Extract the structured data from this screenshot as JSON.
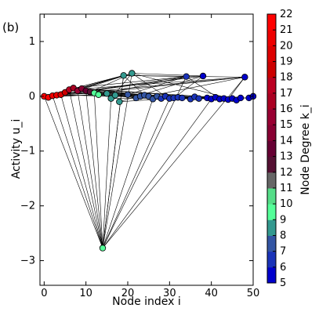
{
  "chart_data": {
    "type": "scatter",
    "panel_label": "(b)",
    "xlabel": "Node index i",
    "ylabel": "Activity u_i",
    "xlim": [
      -1,
      50
    ],
    "ylim": [
      -3.45,
      1.5
    ],
    "xticks": [
      0,
      10,
      20,
      30,
      40,
      50
    ],
    "yticks": [
      1,
      0,
      -1,
      -2,
      -3
    ],
    "colorbar": {
      "label": "Node Degree k_i",
      "min": 5,
      "max": 22,
      "ticks": [
        5,
        6,
        7,
        8,
        9,
        10,
        11,
        12,
        13,
        14,
        15,
        16,
        17,
        18,
        19,
        20,
        21,
        22
      ],
      "band_colors": [
        "#0000cc",
        "#1a33b8",
        "#3355a3",
        "#33998f",
        "#55ff99",
        "#55dd88",
        "#666666",
        "#551133",
        "#660033",
        "#880033",
        "#990033",
        "#aa0022",
        "#bb0022",
        "#cc0000",
        "#dd0000",
        "#ee0000",
        "#ff0000"
      ]
    },
    "nodes": [
      {
        "x": 0,
        "y": 0.0,
        "k": 21
      },
      {
        "x": 1,
        "y": -0.02,
        "k": 21
      },
      {
        "x": 2,
        "y": 0.01,
        "k": 20
      },
      {
        "x": 3,
        "y": 0.02,
        "k": 20
      },
      {
        "x": 4,
        "y": 0.03,
        "k": 19
      },
      {
        "x": 5,
        "y": 0.07,
        "k": 18
      },
      {
        "x": 6,
        "y": 0.12,
        "k": 17
      },
      {
        "x": 7,
        "y": 0.15,
        "k": 16
      },
      {
        "x": 8,
        "y": 0.1,
        "k": 15
      },
      {
        "x": 9,
        "y": 0.14,
        "k": 14
      },
      {
        "x": 10,
        "y": 0.1,
        "k": 13
      },
      {
        "x": 11,
        "y": 0.08,
        "k": 12
      },
      {
        "x": 12,
        "y": 0.06,
        "k": 9
      },
      {
        "x": 13,
        "y": 0.03,
        "k": 9
      },
      {
        "x": 14,
        "y": -2.77,
        "k": 9
      },
      {
        "x": 15,
        "y": 0.05,
        "k": 8
      },
      {
        "x": 16,
        "y": -0.04,
        "k": 8
      },
      {
        "x": 17,
        "y": 0.02,
        "k": 8
      },
      {
        "x": 18,
        "y": -0.1,
        "k": 8
      },
      {
        "x": 19,
        "y": 0.38,
        "k": 8
      },
      {
        "x": 20,
        "y": 0.03,
        "k": 7
      },
      {
        "x": 21,
        "y": 0.42,
        "k": 8
      },
      {
        "x": 22,
        "y": -0.03,
        "k": 7
      },
      {
        "x": 23,
        "y": 0.0,
        "k": 7
      },
      {
        "x": 24,
        "y": 0.02,
        "k": 7
      },
      {
        "x": 25,
        "y": 0.0,
        "k": 7
      },
      {
        "x": 26,
        "y": -0.05,
        "k": 7
      },
      {
        "x": 27,
        "y": 0.0,
        "k": 7
      },
      {
        "x": 28,
        "y": -0.04,
        "k": 6
      },
      {
        "x": 29,
        "y": 0.0,
        "k": 6
      },
      {
        "x": 30,
        "y": -0.04,
        "k": 6
      },
      {
        "x": 31,
        "y": -0.03,
        "k": 6
      },
      {
        "x": 32,
        "y": -0.02,
        "k": 6
      },
      {
        "x": 33,
        "y": -0.03,
        "k": 6
      },
      {
        "x": 34,
        "y": 0.36,
        "k": 6
      },
      {
        "x": 35,
        "y": -0.05,
        "k": 6
      },
      {
        "x": 36,
        "y": -0.01,
        "k": 6
      },
      {
        "x": 37,
        "y": -0.04,
        "k": 6
      },
      {
        "x": 38,
        "y": 0.37,
        "k": 5
      },
      {
        "x": 39,
        "y": -0.03,
        "k": 5
      },
      {
        "x": 40,
        "y": -0.05,
        "k": 5
      },
      {
        "x": 41,
        "y": -0.02,
        "k": 5
      },
      {
        "x": 42,
        "y": -0.05,
        "k": 5
      },
      {
        "x": 43,
        "y": -0.04,
        "k": 5
      },
      {
        "x": 44,
        "y": -0.06,
        "k": 5
      },
      {
        "x": 45,
        "y": -0.04,
        "k": 5
      },
      {
        "x": 46,
        "y": -0.07,
        "k": 5
      },
      {
        "x": 47,
        "y": -0.03,
        "k": 5
      },
      {
        "x": 48,
        "y": 0.35,
        "k": 5
      },
      {
        "x": 49,
        "y": -0.03,
        "k": 5
      },
      {
        "x": 50,
        "y": 0.0,
        "k": 5
      }
    ],
    "edges": [
      [
        14,
        0
      ],
      [
        14,
        2
      ],
      [
        14,
        4
      ],
      [
        14,
        6
      ],
      [
        14,
        8
      ],
      [
        14,
        10
      ],
      [
        14,
        12
      ],
      [
        14,
        16
      ],
      [
        14,
        19
      ],
      [
        14,
        21
      ],
      [
        14,
        26
      ],
      [
        14,
        30
      ],
      [
        14,
        34
      ],
      [
        14,
        40
      ],
      [
        14,
        48
      ],
      [
        19,
        0
      ],
      [
        19,
        3
      ],
      [
        19,
        6
      ],
      [
        19,
        9
      ],
      [
        19,
        14
      ],
      [
        19,
        24
      ],
      [
        19,
        34
      ],
      [
        19,
        48
      ],
      [
        21,
        1
      ],
      [
        21,
        5
      ],
      [
        21,
        8
      ],
      [
        21,
        11
      ],
      [
        21,
        16
      ],
      [
        21,
        29
      ],
      [
        21,
        38
      ],
      [
        21,
        46
      ],
      [
        34,
        2
      ],
      [
        34,
        7
      ],
      [
        34,
        13
      ],
      [
        34,
        20
      ],
      [
        34,
        42
      ],
      [
        38,
        4
      ],
      [
        38,
        10
      ],
      [
        38,
        18
      ],
      [
        38,
        31
      ],
      [
        48,
        0
      ],
      [
        48,
        6
      ],
      [
        48,
        12
      ],
      [
        48,
        25
      ],
      [
        48,
        44
      ],
      [
        0,
        10
      ],
      [
        1,
        15
      ],
      [
        2,
        20
      ],
      [
        3,
        25
      ],
      [
        4,
        30
      ],
      [
        5,
        35
      ],
      [
        6,
        40
      ],
      [
        7,
        45
      ],
      [
        8,
        22
      ],
      [
        9,
        27
      ],
      [
        10,
        32
      ],
      [
        11,
        37
      ],
      [
        12,
        42
      ],
      [
        13,
        47
      ],
      [
        0,
        6
      ],
      [
        2,
        9
      ],
      [
        3,
        12
      ],
      [
        5,
        17
      ],
      [
        7,
        24
      ],
      [
        9,
        36
      ],
      [
        15,
        26
      ],
      [
        16,
        33
      ],
      [
        17,
        41
      ],
      [
        20,
        28
      ],
      [
        22,
        39
      ],
      [
        23,
        44
      ],
      [
        27,
        35
      ],
      [
        29,
        43
      ],
      [
        31,
        49
      ],
      [
        33,
        45
      ],
      [
        36,
        46
      ],
      [
        40,
        49
      ],
      [
        18,
        30
      ],
      [
        24,
        37
      ]
    ]
  }
}
